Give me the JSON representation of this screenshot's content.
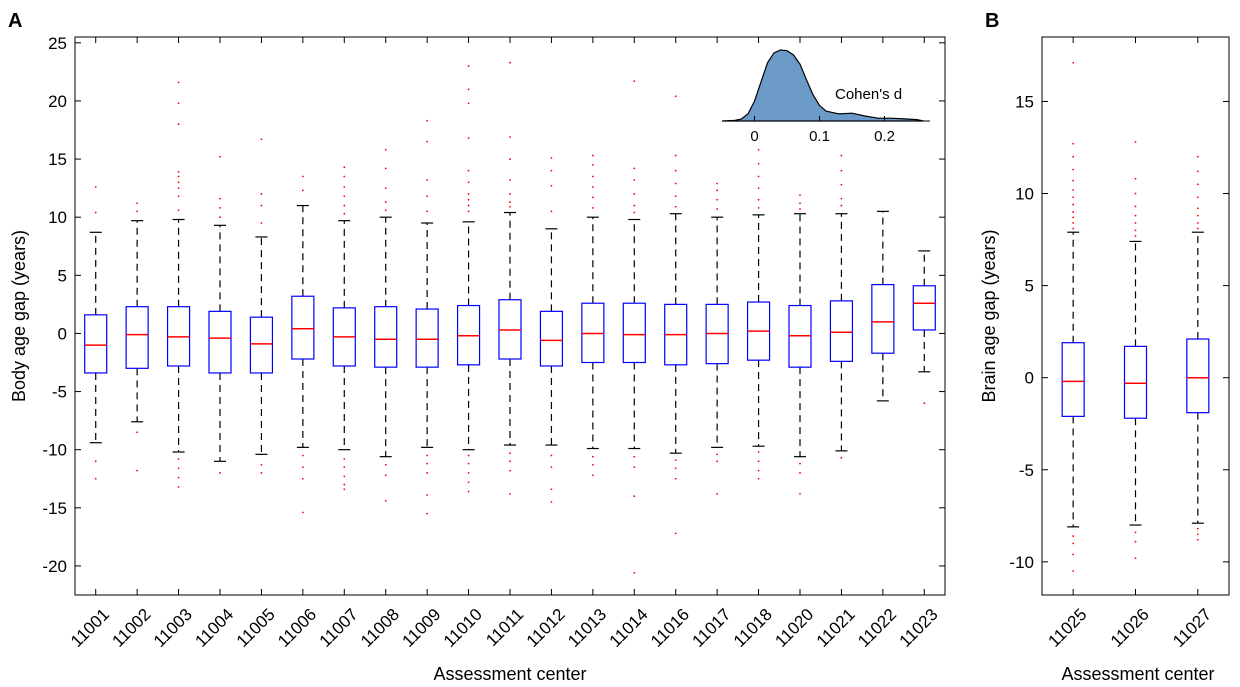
{
  "panel_a_label": "A",
  "panel_b_label": "B",
  "inset_label": "Cohen's d",
  "colors": {
    "box": "#0000ff",
    "median": "#ff0000",
    "outlier": "#ff0000",
    "whisker": "#000000",
    "inset_fill": "#6b9ac9"
  },
  "chart_data": [
    {
      "type": "box",
      "xlabel": "Assessment center",
      "ylabel": "Body age gap (years)",
      "ylim": [
        -22.5,
        25.5
      ],
      "yticks": [
        -20,
        -15,
        -10,
        -5,
        0,
        5,
        10,
        15,
        20,
        25
      ],
      "categories": [
        "11001",
        "11002",
        "11003",
        "11004",
        "11005",
        "11006",
        "11007",
        "11008",
        "11009",
        "11010",
        "11011",
        "11012",
        "11013",
        "11014",
        "11016",
        "11017",
        "11018",
        "11020",
        "11021",
        "11022",
        "11023"
      ],
      "boxes": [
        {
          "q1": -3.4,
          "median": -1.0,
          "q3": 1.6,
          "whisker_low": -9.4,
          "whisker_high": 8.7,
          "outliers": [
            12.6,
            10.4,
            -11.0,
            -12.5
          ]
        },
        {
          "q1": -3.0,
          "median": -0.1,
          "q3": 2.3,
          "whisker_low": -7.6,
          "whisker_high": 9.7,
          "outliers": [
            10.5,
            11.2,
            -8.5,
            -11.8
          ]
        },
        {
          "q1": -2.8,
          "median": -0.3,
          "q3": 2.3,
          "whisker_low": -10.2,
          "whisker_high": 9.8,
          "outliers": [
            21.6,
            19.8,
            18.0,
            13.9,
            13.5,
            13.0,
            12.5,
            11.8,
            10.6,
            -10.8,
            -11.6,
            -12.4,
            -13.2
          ]
        },
        {
          "q1": -3.4,
          "median": -0.4,
          "q3": 1.9,
          "whisker_low": -11.0,
          "whisker_high": 9.3,
          "outliers": [
            15.2,
            11.6,
            10.8,
            10.0,
            -12.0
          ]
        },
        {
          "q1": -3.4,
          "median": -0.9,
          "q3": 1.4,
          "whisker_low": -10.4,
          "whisker_high": 8.3,
          "outliers": [
            16.7,
            12.0,
            11.0,
            9.5,
            -11.3,
            -12.0
          ]
        },
        {
          "q1": -2.2,
          "median": 0.4,
          "q3": 3.2,
          "whisker_low": -9.8,
          "whisker_high": 11.0,
          "outliers": [
            13.5,
            12.3,
            -10.5,
            -11.5,
            -12.5,
            -15.4
          ]
        },
        {
          "q1": -2.8,
          "median": -0.3,
          "q3": 2.2,
          "whisker_low": -10.0,
          "whisker_high": 9.7,
          "outliers": [
            14.3,
            13.5,
            12.6,
            11.8,
            11.0,
            10.3,
            -10.8,
            -11.5,
            -12.3,
            -13.0,
            -13.4
          ]
        },
        {
          "q1": -2.9,
          "median": -0.5,
          "q3": 2.3,
          "whisker_low": -10.6,
          "whisker_high": 10.0,
          "outliers": [
            15.8,
            14.2,
            12.5,
            11.3,
            10.6,
            -11.3,
            -12.2,
            -14.4
          ]
        },
        {
          "q1": -2.9,
          "median": -0.5,
          "q3": 2.1,
          "whisker_low": -9.8,
          "whisker_high": 9.5,
          "outliers": [
            18.3,
            16.5,
            13.2,
            11.8,
            10.5,
            -10.5,
            -11.2,
            -12.0,
            -13.9,
            -15.5
          ]
        },
        {
          "q1": -2.7,
          "median": -0.2,
          "q3": 2.4,
          "whisker_low": -10.0,
          "whisker_high": 9.6,
          "outliers": [
            23.0,
            21.0,
            19.8,
            16.8,
            14.0,
            13.0,
            12.0,
            11.5,
            11.0,
            10.5,
            -10.5,
            -11.2,
            -12.0,
            -12.8,
            -13.6
          ]
        },
        {
          "q1": -2.2,
          "median": 0.3,
          "q3": 2.9,
          "whisker_low": -9.6,
          "whisker_high": 10.4,
          "outliers": [
            23.3,
            16.9,
            15.0,
            13.2,
            12.0,
            11.3,
            10.9,
            -10.3,
            -11.0,
            -11.8,
            -13.8
          ]
        },
        {
          "q1": -2.8,
          "median": -0.6,
          "q3": 1.9,
          "whisker_low": -9.6,
          "whisker_high": 9.0,
          "outliers": [
            15.1,
            14.0,
            12.7,
            10.5,
            -10.5,
            -11.5,
            -13.4,
            -14.5
          ]
        },
        {
          "q1": -2.5,
          "median": 0.0,
          "q3": 2.6,
          "whisker_low": -9.9,
          "whisker_high": 10.0,
          "outliers": [
            15.3,
            14.5,
            13.5,
            12.6,
            11.7,
            10.8,
            -10.6,
            -11.3,
            -12.2
          ]
        },
        {
          "q1": -2.5,
          "median": -0.1,
          "q3": 2.6,
          "whisker_low": -9.9,
          "whisker_high": 9.8,
          "outliers": [
            21.7,
            14.2,
            13.2,
            12.0,
            11.0,
            10.4,
            -10.6,
            -11.5,
            -14.0,
            -20.6
          ]
        },
        {
          "q1": -2.7,
          "median": -0.1,
          "q3": 2.5,
          "whisker_low": -10.3,
          "whisker_high": 10.3,
          "outliers": [
            20.4,
            15.3,
            14.0,
            12.9,
            11.8,
            10.9,
            -10.9,
            -11.6,
            -12.5,
            -17.2
          ]
        },
        {
          "q1": -2.6,
          "median": 0.0,
          "q3": 2.5,
          "whisker_low": -9.8,
          "whisker_high": 10.0,
          "outliers": [
            12.9,
            12.3,
            11.5,
            10.7,
            -10.4,
            -11.0,
            -13.8
          ]
        },
        {
          "q1": -2.3,
          "median": 0.2,
          "q3": 2.7,
          "whisker_low": -9.7,
          "whisker_high": 10.2,
          "outliers": [
            15.8,
            14.6,
            13.5,
            12.5,
            11.5,
            10.8,
            -10.2,
            -11.0,
            -11.8,
            -12.5
          ]
        },
        {
          "q1": -2.9,
          "median": -0.2,
          "q3": 2.4,
          "whisker_low": -10.6,
          "whisker_high": 10.3,
          "outliers": [
            11.9,
            11.2,
            10.7,
            -11.2,
            -12.0,
            -13.8
          ]
        },
        {
          "q1": -2.4,
          "median": 0.1,
          "q3": 2.8,
          "whisker_low": -10.1,
          "whisker_high": 10.3,
          "outliers": [
            15.3,
            14.0,
            12.8,
            11.6,
            11.0,
            -10.7
          ]
        },
        {
          "q1": -1.7,
          "median": 1.0,
          "q3": 4.2,
          "whisker_low": -5.8,
          "whisker_high": 10.5,
          "outliers": []
        },
        {
          "q1": 0.3,
          "median": 2.6,
          "q3": 4.1,
          "whisker_low": -3.3,
          "whisker_high": 7.1,
          "outliers": [
            -6.0
          ]
        }
      ]
    },
    {
      "type": "box",
      "xlabel": "Assessment center",
      "ylabel": "Brain age gap (years)",
      "ylim": [
        -11.8,
        18.5
      ],
      "yticks": [
        -10,
        -5,
        0,
        5,
        10,
        15
      ],
      "categories": [
        "11025",
        "11026",
        "11027"
      ],
      "boxes": [
        {
          "q1": -2.1,
          "median": -0.2,
          "q3": 1.9,
          "whisker_low": -8.1,
          "whisker_high": 7.9,
          "outliers": [
            17.1,
            12.7,
            12.0,
            11.3,
            10.7,
            10.2,
            9.8,
            9.4,
            9.0,
            8.7,
            8.4,
            8.1,
            -8.6,
            -9.0,
            -9.6,
            -10.5
          ]
        },
        {
          "q1": -2.2,
          "median": -0.3,
          "q3": 1.7,
          "whisker_low": -8.0,
          "whisker_high": 7.4,
          "outliers": [
            12.8,
            10.8,
            10.0,
            9.3,
            8.8,
            8.4,
            8.0,
            7.7,
            -8.4,
            -8.9,
            -9.8
          ]
        },
        {
          "q1": -1.9,
          "median": 0.0,
          "q3": 2.1,
          "whisker_low": -7.9,
          "whisker_high": 7.9,
          "outliers": [
            12.0,
            11.2,
            10.5,
            9.8,
            9.2,
            8.8,
            8.4,
            8.1,
            -8.2,
            -8.5,
            -8.8
          ]
        }
      ]
    },
    {
      "type": "area",
      "inset": true,
      "title": "Cohen's d",
      "xlim": [
        -0.05,
        0.27
      ],
      "xticks": [
        0,
        0.1,
        0.2
      ],
      "xticklabels": [
        "0",
        "0.1",
        "0.2"
      ],
      "x": [
        -0.05,
        -0.03,
        -0.02,
        -0.01,
        0.0,
        0.01,
        0.02,
        0.03,
        0.04,
        0.05,
        0.06,
        0.07,
        0.08,
        0.09,
        0.1,
        0.11,
        0.13,
        0.15,
        0.17,
        0.19,
        0.21,
        0.23,
        0.25,
        0.26
      ],
      "y": [
        0.0,
        0.01,
        0.03,
        0.1,
        0.28,
        0.55,
        0.82,
        0.96,
        1.0,
        0.99,
        0.93,
        0.8,
        0.58,
        0.37,
        0.22,
        0.14,
        0.1,
        0.11,
        0.07,
        0.04,
        0.04,
        0.03,
        0.02,
        0.0
      ]
    }
  ]
}
